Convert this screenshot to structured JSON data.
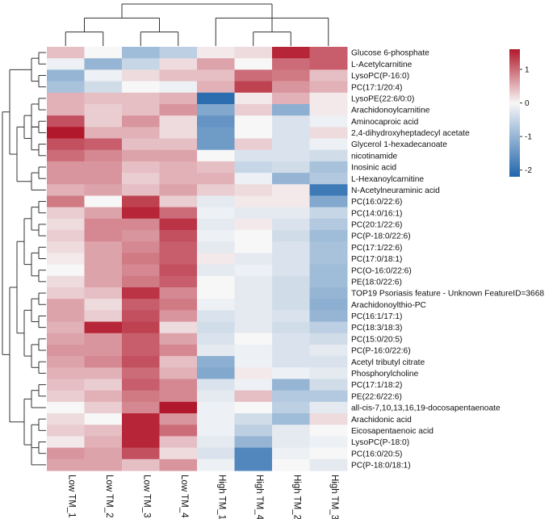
{
  "chart_data": {
    "type": "heatmap",
    "title": "",
    "columns": [
      "Low TM_1",
      "Low TM_2",
      "Low TM_3",
      "Low TM_4",
      "High TM_1",
      "High TM_4",
      "High TM_2",
      "High TM_3"
    ],
    "rows": [
      "Glucose 6-phosphate",
      "L-Acetylcarnitine",
      "LysoPC(P-16:0)",
      "PC(17:1/20:4)",
      "LysoPE(22:6/0:0)",
      "Arachidonoylcarnitine",
      "Aminocaproic acid",
      "2,4-dihydroxyheptadecyl acetate",
      "Glycerol 1-hexadecanoate",
      "nicotinamide",
      "Inosinic acid",
      "L-Hexanoylcarnitine",
      "N-Acetylneuraminic acid",
      "PC(16:0/22:6)",
      "PC(14:0/16:1)",
      "PC(20:1/22:6)",
      "PC(P-18:0/22:6)",
      "PC(17:1/22:6)",
      "PC(17:0/18:1)",
      "PC(O-16:0/22:6)",
      "PE(18:0/22:6)",
      "TOP19 Psoriasis feature - Unknown FeatureID=3668",
      "Arachidonoylthio-PC",
      "PC(16:1/17:1)",
      "PC(18:3/18:3)",
      "PC(15:0/20:5)",
      "PC(P-16:0/22:6)",
      "Acetyl tributyl citrate",
      "Phosphorylcholine",
      "PC(17:1/18:2)",
      "PE(22:6/22:6)",
      "all-cis-7,10,13,16,19-docosapentaenoate",
      "Arachidonic acid",
      "Eicosapentaenoic acid",
      "LysoPC(P-18:0)",
      "PC(16:0/20:5)",
      "PC(P-18:0/18:1)"
    ],
    "values": [
      [
        0.4,
        0.0,
        -0.9,
        -0.6,
        0.1,
        0.2,
        1.5,
        1.1
      ],
      [
        -0.1,
        -1.0,
        -0.5,
        0.2,
        0.6,
        0.0,
        1.0,
        1.1
      ],
      [
        -1.0,
        -0.1,
        0.2,
        0.4,
        0.4,
        1.0,
        0.9,
        0.4
      ],
      [
        -0.8,
        -0.4,
        0.0,
        -0.1,
        0.5,
        1.3,
        0.7,
        0.5
      ],
      [
        0.5,
        0.4,
        0.4,
        0.5,
        -2.1,
        0.1,
        0.5,
        0.1
      ],
      [
        0.5,
        0.3,
        0.4,
        0.7,
        -1.2,
        0.3,
        -1.1,
        0.1
      ],
      [
        1.2,
        0.3,
        0.7,
        0.2,
        -1.5,
        0.0,
        -0.3,
        -0.1
      ],
      [
        1.6,
        0.5,
        0.5,
        0.2,
        -1.4,
        0.0,
        -0.3,
        0.2
      ],
      [
        1.2,
        1.1,
        0.4,
        0.4,
        -1.4,
        0.3,
        -0.3,
        -0.1
      ],
      [
        1.0,
        0.8,
        0.6,
        0.6,
        0.0,
        -0.3,
        -0.3,
        -0.4
      ],
      [
        0.7,
        0.7,
        0.4,
        0.5,
        0.4,
        -0.5,
        -0.4,
        -0.8
      ],
      [
        0.7,
        0.7,
        0.3,
        0.5,
        0.5,
        -0.1,
        -1.0,
        -0.7
      ],
      [
        0.5,
        0.6,
        0.4,
        0.6,
        0.3,
        0.2,
        0.1,
        -1.9
      ],
      [
        0.9,
        0.0,
        1.3,
        0.3,
        -0.2,
        0.1,
        0.1,
        -1.2
      ],
      [
        0.3,
        0.6,
        1.5,
        1.0,
        -0.1,
        -0.2,
        -0.2,
        -0.5
      ],
      [
        0.2,
        0.8,
        0.8,
        1.4,
        -0.2,
        0.1,
        -0.3,
        -0.7
      ],
      [
        0.3,
        0.8,
        0.7,
        1.2,
        -0.1,
        0.0,
        -0.4,
        -0.9
      ],
      [
        0.2,
        0.6,
        0.8,
        1.1,
        -0.2,
        0.0,
        -0.3,
        -0.8
      ],
      [
        0.1,
        0.6,
        0.9,
        1.1,
        0.1,
        -0.2,
        -0.3,
        -0.8
      ],
      [
        0.0,
        0.6,
        0.8,
        1.2,
        -0.2,
        -0.1,
        -0.3,
        -0.9
      ],
      [
        0.2,
        0.6,
        0.9,
        1.1,
        0.0,
        -0.2,
        -0.4,
        -0.9
      ],
      [
        0.3,
        0.4,
        1.4,
        0.8,
        0.0,
        -0.2,
        -0.4,
        -1.0
      ],
      [
        0.6,
        0.2,
        1.1,
        0.9,
        -0.1,
        -0.2,
        -0.4,
        -1.1
      ],
      [
        0.6,
        0.3,
        1.2,
        0.7,
        -0.3,
        -0.2,
        -0.3,
        -1.0
      ],
      [
        0.5,
        1.5,
        1.3,
        0.2,
        -0.4,
        -0.2,
        -0.4,
        -0.6
      ],
      [
        0.6,
        0.7,
        1.1,
        0.6,
        -0.3,
        0.0,
        -0.3,
        -0.4
      ],
      [
        0.7,
        0.7,
        1.1,
        0.8,
        -0.2,
        -0.1,
        -0.3,
        -0.2
      ],
      [
        0.6,
        0.8,
        1.2,
        0.4,
        -1.1,
        -0.1,
        -0.3,
        -0.3
      ],
      [
        0.5,
        0.5,
        1.0,
        0.5,
        -1.2,
        0.1,
        -0.1,
        -0.2
      ],
      [
        0.4,
        0.3,
        1.1,
        0.8,
        -0.3,
        -0.1,
        -1.0,
        -0.4
      ],
      [
        0.3,
        0.5,
        0.9,
        0.8,
        -0.2,
        0.4,
        -0.7,
        -0.7
      ],
      [
        0.0,
        0.3,
        0.8,
        1.6,
        -0.1,
        0.0,
        -0.6,
        -0.2
      ],
      [
        0.2,
        0.0,
        1.5,
        0.7,
        -0.1,
        -0.4,
        -0.9,
        0.2
      ],
      [
        0.3,
        0.4,
        1.5,
        1.0,
        -0.1,
        -0.6,
        -0.2,
        0.0
      ],
      [
        0.1,
        0.5,
        1.5,
        0.4,
        -0.2,
        -1.0,
        -0.2,
        -0.1
      ],
      [
        0.7,
        0.6,
        1.2,
        0.2,
        -0.3,
        -1.7,
        -0.1,
        0.0
      ],
      [
        0.6,
        0.6,
        0.4,
        0.7,
        -0.1,
        -1.7,
        0.0,
        -0.2
      ]
    ],
    "colorbar": {
      "ticks": [
        1,
        0,
        -1,
        -2
      ],
      "tick_labels": [
        "1",
        "0",
        "-1",
        "-2"
      ],
      "vmin": -2.2,
      "vmax": 1.6,
      "low_color": "#2166ac",
      "mid_color": "#f7f7f7",
      "high_color": "#b2182b"
    },
    "row_dendrogram": [
      [
        [
          0,
          1
        ],
        [
          2,
          3
        ],
        [
          4,
          5
        ],
        [
          6,
          7
        ],
        [
          8,
          9
        ],
        [
          10,
          11
        ],
        [
          13,
          14
        ],
        [
          15,
          16
        ],
        [
          17,
          18
        ],
        [
          19,
          20
        ],
        [
          21,
          22
        ],
        [
          23,
          24
        ],
        [
          25,
          26
        ],
        [
          27,
          28
        ],
        [
          29,
          30
        ],
        [
          32,
          33
        ],
        [
          34,
          35
        ]
      ],
      [
        [
          0,
          1,
          2,
          3
        ],
        [
          4,
          5,
          6
        ],
        [
          7,
          8,
          9
        ],
        [
          10,
          11,
          12
        ],
        [
          13,
          14,
          15,
          16
        ],
        [
          17,
          18,
          19,
          20
        ],
        [
          21,
          22,
          23,
          24
        ],
        [
          25,
          26,
          27,
          28
        ],
        [
          29,
          30,
          31
        ],
        [
          32,
          33,
          34,
          35,
          36
        ]
      ],
      [
        [
          4,
          5,
          6,
          7,
          8,
          9
        ],
        [
          13,
          14,
          15,
          16,
          17,
          18,
          19,
          20
        ],
        [
          21,
          22,
          23,
          24,
          25,
          26,
          27,
          28
        ],
        [
          29,
          30,
          31,
          32,
          33,
          34,
          35,
          36
        ]
      ],
      [
        [
          4,
          5,
          6,
          7,
          8,
          9,
          10,
          11,
          12
        ],
        [
          13,
          14,
          15,
          16,
          17,
          18,
          19,
          20,
          21,
          22,
          23,
          24,
          25,
          26,
          27,
          28
        ],
        [
          29,
          30,
          31,
          32,
          33,
          34,
          35,
          36
        ]
      ],
      [
        [
          0,
          1,
          2,
          3,
          4,
          5,
          6,
          7,
          8,
          9,
          10,
          11,
          12
        ],
        [
          13,
          14,
          15,
          16,
          17,
          18,
          19,
          20,
          21,
          22,
          23,
          24,
          25,
          26,
          27,
          28,
          29,
          30,
          31,
          32,
          33,
          34,
          35,
          36
        ]
      ],
      [
        [
          0,
          1,
          2,
          3,
          4,
          5,
          6,
          7,
          8,
          9,
          10,
          11,
          12,
          13,
          14,
          15,
          16,
          17,
          18,
          19,
          20,
          21,
          22,
          23,
          24,
          25,
          26,
          27,
          28,
          29,
          30,
          31,
          32,
          33,
          34,
          35,
          36
        ]
      ]
    ],
    "col_dendrogram": [
      [
        [
          0,
          1
        ],
        [
          2,
          3
        ],
        [
          5,
          6
        ]
      ],
      [
        [
          0,
          1,
          2,
          3
        ],
        [
          4,
          5,
          6,
          7
        ]
      ],
      [
        [
          0,
          1,
          2,
          3,
          4,
          5,
          6,
          7
        ]
      ]
    ]
  }
}
